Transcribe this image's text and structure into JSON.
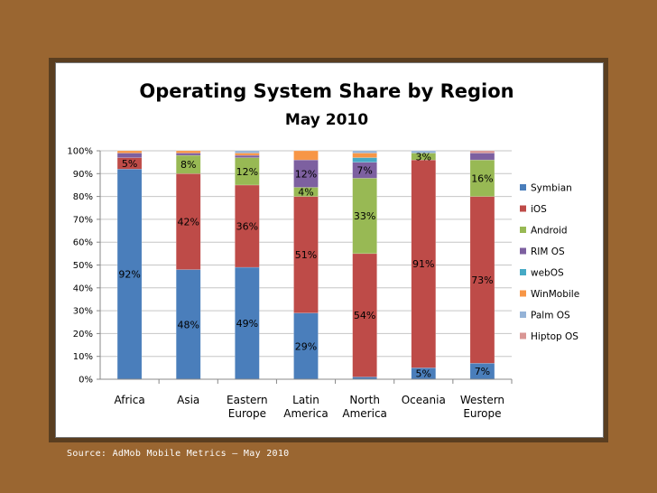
{
  "source_note": "Source: AdMob Mobile Metrics – May 2010",
  "chart_data": {
    "type": "bar",
    "stacked": true,
    "title": "Operating System Share by Region",
    "subtitle": "May 2010",
    "categories": [
      [
        "Africa"
      ],
      [
        "Asia"
      ],
      [
        "Eastern",
        "Europe"
      ],
      [
        "Latin",
        "America"
      ],
      [
        "North",
        "America"
      ],
      [
        "Oceania"
      ],
      [
        "Western",
        "Europe"
      ]
    ],
    "ylim": [
      0,
      100
    ],
    "yticks": [
      "0%",
      "10%",
      "20%",
      "30%",
      "40%",
      "50%",
      "60%",
      "70%",
      "80%",
      "90%",
      "100%"
    ],
    "legend_position": "right",
    "series": [
      {
        "name": "Symbian",
        "color": "#4a7ebb",
        "values": [
          92,
          48,
          49,
          29,
          1,
          5,
          7
        ]
      },
      {
        "name": "iOS",
        "color": "#be4b48",
        "values": [
          5,
          42,
          36,
          51,
          54,
          91,
          73
        ]
      },
      {
        "name": "Android",
        "color": "#98b954",
        "values": [
          0,
          8,
          12,
          4,
          33,
          3,
          16
        ]
      },
      {
        "name": "RIM OS",
        "color": "#7d60a0",
        "values": [
          2,
          1,
          1,
          12,
          7,
          0,
          3
        ]
      },
      {
        "name": "webOS",
        "color": "#46aac5",
        "values": [
          0,
          0,
          0,
          0,
          2,
          0,
          0
        ]
      },
      {
        "name": "WinMobile",
        "color": "#f79646",
        "values": [
          1,
          1,
          1,
          4,
          2,
          0,
          0
        ]
      },
      {
        "name": "Palm OS",
        "color": "#95b3d7",
        "values": [
          0,
          0,
          1,
          0,
          1,
          1,
          0
        ]
      },
      {
        "name": "Hiptop OS",
        "color": "#d99694",
        "values": [
          0,
          0,
          0,
          0,
          0,
          0,
          1
        ]
      }
    ],
    "data_labels": [
      {
        "category": 0,
        "series": 0,
        "text": "92%"
      },
      {
        "category": 0,
        "series": 1,
        "text": "5%"
      },
      {
        "category": 1,
        "series": 0,
        "text": "48%"
      },
      {
        "category": 1,
        "series": 1,
        "text": "42%"
      },
      {
        "category": 1,
        "series": 2,
        "text": "8%"
      },
      {
        "category": 2,
        "series": 0,
        "text": "49%"
      },
      {
        "category": 2,
        "series": 1,
        "text": "36%"
      },
      {
        "category": 2,
        "series": 2,
        "text": "12%"
      },
      {
        "category": 3,
        "series": 0,
        "text": "29%"
      },
      {
        "category": 3,
        "series": 1,
        "text": "51%"
      },
      {
        "category": 3,
        "series": 2,
        "text": "4%"
      },
      {
        "category": 3,
        "series": 3,
        "text": "12%"
      },
      {
        "category": 4,
        "series": 1,
        "text": "54%"
      },
      {
        "category": 4,
        "series": 2,
        "text": "33%"
      },
      {
        "category": 4,
        "series": 3,
        "text": "7%"
      },
      {
        "category": 5,
        "series": 0,
        "text": "5%"
      },
      {
        "category": 5,
        "series": 1,
        "text": "91%"
      },
      {
        "category": 5,
        "series": 2,
        "text": "3%"
      },
      {
        "category": 6,
        "series": 0,
        "text": "7%"
      },
      {
        "category": 6,
        "series": 1,
        "text": "73%"
      },
      {
        "category": 6,
        "series": 2,
        "text": "16%"
      }
    ]
  }
}
